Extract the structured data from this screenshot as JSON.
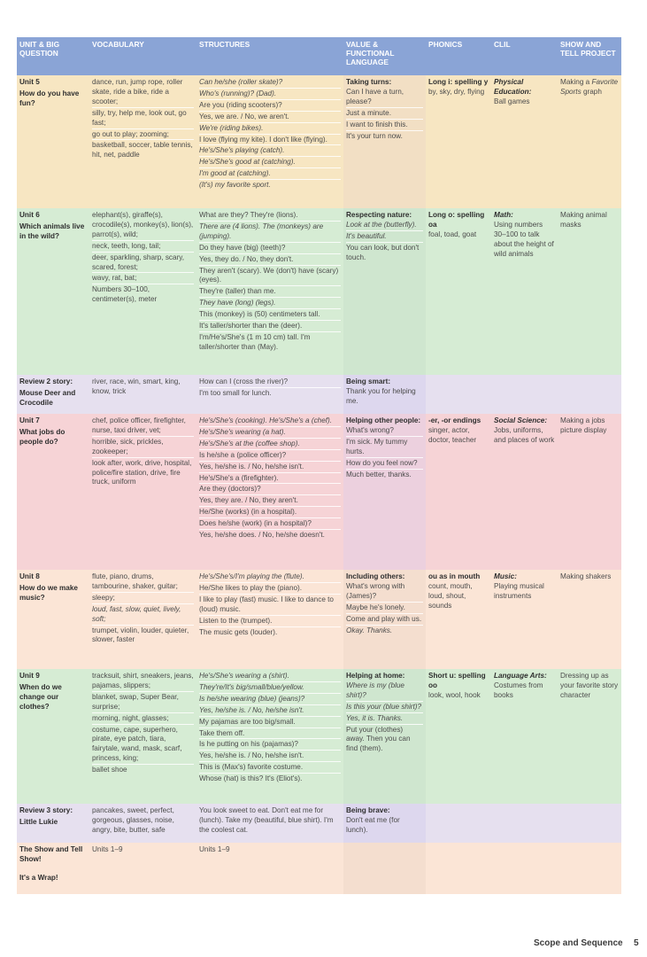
{
  "headers": [
    "UNIT & BIG QUESTION",
    "VOCABULARY",
    "STRUCTURES",
    "VALUE & FUNCTIONAL LANGUAGE",
    "PHONICS",
    "CLIL",
    "SHOW AND TELL PROJECT"
  ],
  "rows": [
    {
      "cls": "u5",
      "unit": [
        "Unit 5",
        "How do you have fun?"
      ],
      "vocab": [
        "dance, run, jump rope, roller skate, ride a bike, ride a scooter;",
        "silly, try, help me, look out, go fast;",
        "go out to play; zooming;",
        "basketball, soccer, table tennis, hit, net, paddle"
      ],
      "struct": [
        {
          "t": "Can he/she (roller skate)?",
          "i": true
        },
        {
          "t": "Who's (running)? (Dad).",
          "i": true
        },
        {
          "t": "Are you (riding scooters)?",
          "i": false
        },
        {
          "t": "Yes, we are. / No, we aren't.",
          "i": false
        },
        {
          "t": "We're (riding bikes).",
          "i": true
        },
        {
          "t": "I love (flying my kite). I don't like (flying).",
          "i": false
        },
        {
          "t": "He's/She's playing (catch).",
          "i": true
        },
        {
          "t": "He's/She's good at (catching).",
          "i": true
        },
        {
          "t": "I'm good at (catching).",
          "i": true
        },
        {
          "t": "(It's) my favorite sport.",
          "i": true
        }
      ],
      "value": {
        "title": "Taking turns:",
        "lines": [
          {
            "t": "Can I have a turn, please?",
            "i": false
          },
          {
            "t": "Just a minute.",
            "i": false
          },
          {
            "t": "I want to finish this.",
            "i": false
          },
          {
            "t": "It's your turn now.",
            "i": false
          }
        ]
      },
      "phon": {
        "title": "Long i: spelling y",
        "lines": [
          "by, sky, dry, flying"
        ]
      },
      "clil": {
        "title": "Physical Education:",
        "lines": [
          "Ball games"
        ]
      },
      "proj": [
        {
          "t": "Making a ",
          "i": false
        },
        {
          "t": "Favorite Sports",
          "i": true
        },
        {
          "t": " graph",
          "i": false
        }
      ]
    },
    {
      "cls": "u6",
      "unit": [
        "Unit 6",
        "Which animals live in the wild?"
      ],
      "vocab": [
        "elephant(s), giraffe(s), crocodile(s), monkey(s), lion(s), parrot(s), wild;",
        "neck, teeth, long, tail;",
        "deer, sparkling, sharp, scary, scared, forest;",
        "wavy, rat, bat;",
        "Numbers 30–100, centimeter(s), meter"
      ],
      "struct": [
        {
          "t": "What are they? They're (lions).",
          "i": false
        },
        {
          "t": "There are (4 lions). The (monkeys) are (jumping).",
          "i": true
        },
        {
          "t": "Do they have (big) (teeth)?",
          "i": false
        },
        {
          "t": "Yes, they do. / No, they don't.",
          "i": false
        },
        {
          "t": "They aren't (scary). We (don't) have (scary) (eyes).",
          "i": false
        },
        {
          "t": "They're (taller) than me.",
          "i": false
        },
        {
          "t": "They have (long) (legs).",
          "i": true
        },
        {
          "t": "This (monkey) is (50) centimeters tall.",
          "i": false
        },
        {
          "t": "It's taller/shorter than the (deer).",
          "i": false
        },
        {
          "t": "I'm/He's/She's (1 m 10 cm) tall. I'm taller/shorter than (May).",
          "i": false
        }
      ],
      "value": {
        "title": "Respecting nature:",
        "lines": [
          {
            "t": "Look at the (butterfly).",
            "i": true
          },
          {
            "t": "It's beautiful.",
            "i": true
          },
          {
            "t": "You can look, but don't touch.",
            "i": false
          }
        ]
      },
      "phon": {
        "title": "Long o: spelling oa",
        "lines": [
          "foal, toad, goat"
        ]
      },
      "clil": {
        "title": "Math:",
        "lines": [
          "Using numbers 30–100 to talk about the height of wild animals"
        ]
      },
      "proj": [
        {
          "t": "Making animal masks",
          "i": false
        }
      ]
    },
    {
      "cls": "rv2",
      "unit": [
        "Review 2 story:",
        "Mouse Deer and Crocodile"
      ],
      "unitFirstBold": true,
      "vocab": [
        "river, race, win, smart, king, know, trick"
      ],
      "struct": [
        {
          "t": "How can I (cross the river)?",
          "i": false
        },
        {
          "t": "I'm too small for lunch.",
          "i": false
        }
      ],
      "value": {
        "title": "Being smart:",
        "lines": [
          {
            "t": "Thank you for helping me.",
            "i": false
          }
        ]
      },
      "phon": {
        "title": "",
        "lines": []
      },
      "clil": {
        "title": "",
        "lines": []
      },
      "proj": []
    },
    {
      "cls": "u7",
      "unit": [
        "Unit 7",
        "What jobs do people do?"
      ],
      "vocab": [
        "chef, police officer, firefighter, nurse, taxi driver, vet;",
        "horrible, sick, prickles, zookeeper;",
        "look after, work, drive, hospital, police/fire station, drive, fire truck, uniform"
      ],
      "struct": [
        {
          "t": "He's/She's (cooking). He's/She's a (chef).",
          "i": true
        },
        {
          "t": "He's/She's wearing (a hat).",
          "i": true
        },
        {
          "t": "He's/She's at the (coffee shop).",
          "i": true
        },
        {
          "t": "Is he/she a (police officer)?",
          "i": false
        },
        {
          "t": "Yes, he/she is. / No, he/she isn't.",
          "i": false
        },
        {
          "t": "He's/She's a (firefighter).",
          "i": false
        },
        {
          "t": "Are they (doctors)?",
          "i": false
        },
        {
          "t": "Yes, they are. / No, they aren't.",
          "i": false
        },
        {
          "t": "He/She (works) (in a hospital).",
          "i": false
        },
        {
          "t": "Does he/she (work) (in a hospital)?",
          "i": false
        },
        {
          "t": "Yes, he/she does. / No, he/she doesn't.",
          "i": false
        }
      ],
      "value": {
        "title": "Helping other people:",
        "lines": [
          {
            "t": "What's wrong?",
            "i": false
          },
          {
            "t": "I'm sick. My tummy hurts.",
            "i": false
          },
          {
            "t": "How do you feel now?",
            "i": false
          },
          {
            "t": "Much better, thanks.",
            "i": false
          }
        ]
      },
      "phon": {
        "title": "-er, -or endings",
        "lines": [
          "singer, actor, doctor, teacher"
        ]
      },
      "clil": {
        "title": "Social Science:",
        "lines": [
          "Jobs, uniforms, and places of work"
        ]
      },
      "proj": [
        {
          "t": "Making a jobs picture display",
          "i": false
        }
      ]
    },
    {
      "cls": "u8",
      "unit": [
        "Unit 8",
        "How do we make music?"
      ],
      "vocab": [
        "flute, piano, drums, tambourine, shaker, guitar;",
        "sleepy;",
        "loud, fast, slow, quiet, lively, soft;",
        "trumpet, violin, louder, quieter, slower, faster"
      ],
      "vocabItalic": [
        false,
        false,
        true,
        false
      ],
      "struct": [
        {
          "t": "He's/She's/I'm playing the (flute).",
          "i": true
        },
        {
          "t": "He/She likes to play the (piano).",
          "i": false
        },
        {
          "t": "I like to play (fast) music. I like to dance to (loud) music.",
          "i": false
        },
        {
          "t": "Listen to the (trumpet).",
          "i": false
        },
        {
          "t": "The music gets (louder).",
          "i": false
        }
      ],
      "value": {
        "title": "Including others:",
        "lines": [
          {
            "t": "What's wrong with (James)?",
            "i": false
          },
          {
            "t": "Maybe he's lonely.",
            "i": false
          },
          {
            "t": "Come and play with us.",
            "i": false
          },
          {
            "t": "Okay. Thanks.",
            "i": true
          }
        ]
      },
      "phon": {
        "title": "ou as in mouth",
        "lines": [
          "count, mouth, loud, shout, sounds"
        ]
      },
      "clil": {
        "title": "Music:",
        "lines": [
          "Playing musical instruments"
        ]
      },
      "proj": [
        {
          "t": "Making shakers",
          "i": false
        }
      ]
    },
    {
      "cls": "u9",
      "unit": [
        "Unit 9",
        "When do we change our clothes?"
      ],
      "vocab": [
        "tracksuit, shirt, sneakers, jeans, pajamas, slippers;",
        "blanket, swap, Super Bear, surprise;",
        "morning, night, glasses;",
        "costume, cape, superhero, pirate, eye patch, tiara, fairytale, wand, mask, scarf, princess, king;",
        "ballet shoe"
      ],
      "struct": [
        {
          "t": "He's/She's wearing a (shirt).",
          "i": true
        },
        {
          "t": "They're/It's big/small/blue/yellow.",
          "i": true
        },
        {
          "t": "Is he/she wearing (blue) (jeans)?",
          "i": true
        },
        {
          "t": "Yes, he/she is. / No, he/she isn't.",
          "i": true
        },
        {
          "t": "My pajamas are too big/small.",
          "i": false
        },
        {
          "t": "Take them off.",
          "i": false
        },
        {
          "t": "Is he putting on his (pajamas)?",
          "i": false
        },
        {
          "t": "Yes, he/she is. / No, he/she isn't.",
          "i": false
        },
        {
          "t": "This is (Max's) favorite costume.",
          "i": false
        },
        {
          "t": "Whose (hat) is this? It's (Eliot's).",
          "i": false
        }
      ],
      "value": {
        "title": "Helping at home:",
        "lines": [
          {
            "t": "Where is my (blue shirt)?",
            "i": true
          },
          {
            "t": "Is this your (blue shirt)?",
            "i": true
          },
          {
            "t": "Yes, it is. Thanks.",
            "i": true
          },
          {
            "t": "Put your (clothes) away. Then you can find (them).",
            "i": false
          }
        ]
      },
      "phon": {
        "title": "Short u: spelling oo",
        "lines": [
          "look, wool, hook"
        ]
      },
      "clil": {
        "title": "Language Arts:",
        "lines": [
          "Costumes from books"
        ]
      },
      "proj": [
        {
          "t": "Dressing up as your favorite story character",
          "i": false
        }
      ]
    },
    {
      "cls": "rv3",
      "unit": [
        "Review 3 story:",
        "Little Lukie"
      ],
      "unitFirstBold": true,
      "vocab": [
        "pancakes, sweet, perfect, gorgeous, glasses, noise, angry, bite, butter, safe"
      ],
      "struct": [
        {
          "t": "You look sweet to eat. Don't eat me for (lunch). Take my (beautiful, blue shirt). I'm the coolest cat.",
          "i": false
        }
      ],
      "value": {
        "title": "Being brave:",
        "lines": [
          {
            "t": "Don't eat me (for lunch).",
            "i": false
          }
        ]
      },
      "phon": {
        "title": "",
        "lines": []
      },
      "clil": {
        "title": "",
        "lines": []
      },
      "proj": []
    },
    {
      "cls": "fin",
      "unit": [
        "The Show and Tell Show!",
        "It's a Wrap!"
      ],
      "unitFirstBold": true,
      "vocab": [
        "Units 1–9"
      ],
      "struct": [
        {
          "t": "Units 1–9",
          "i": false
        }
      ],
      "value": {
        "title": "",
        "lines": []
      },
      "phon": {
        "title": "",
        "lines": []
      },
      "clil": {
        "title": "",
        "lines": []
      },
      "proj": []
    }
  ],
  "footer": {
    "title": "Scope and Sequence",
    "page": "5"
  }
}
